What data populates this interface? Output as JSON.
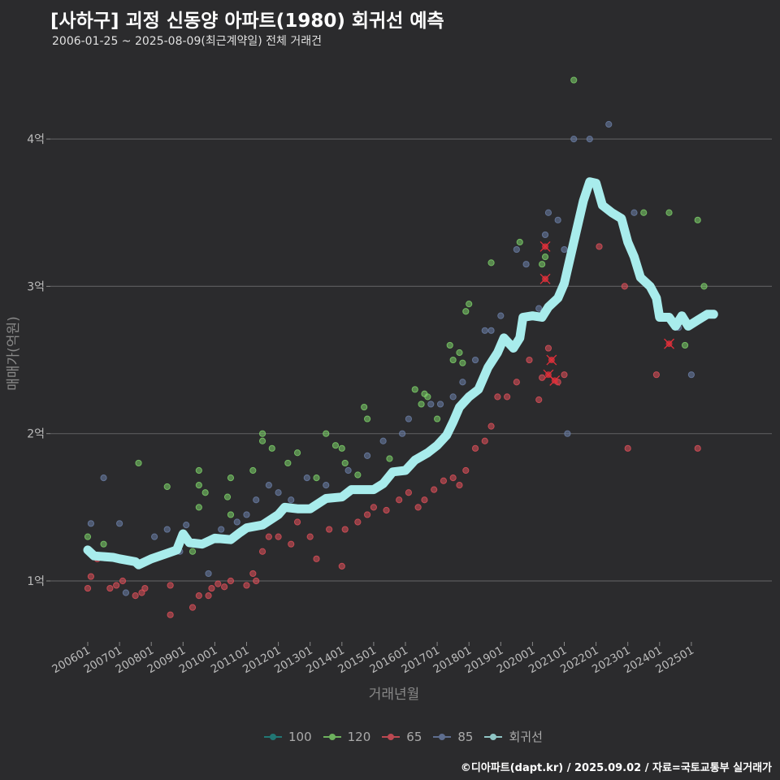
{
  "chart_data": {
    "type": "scatter",
    "title": "[사하구] 괴정 신동양 아파트(1980) 회귀선 예측",
    "subtitle": "2006-01-25 ~ 2025-08-09(최근계약일) 전체 거래건",
    "xlabel": "거래년월",
    "ylabel": "매매가(억원)",
    "xlim": [
      2005.6,
      2026.2
    ],
    "ylim": [
      0.6,
      4.6
    ],
    "yticks": [
      {
        "v": 1,
        "label": "1억"
      },
      {
        "v": 2,
        "label": "2억"
      },
      {
        "v": 3,
        "label": "3억"
      },
      {
        "v": 4,
        "label": "4억"
      }
    ],
    "xticks": [
      "200601",
      "200701",
      "200801",
      "200901",
      "201001",
      "201101",
      "201201",
      "201301",
      "201401",
      "201501",
      "201601",
      "201701",
      "201801",
      "201901",
      "202001",
      "202101",
      "202201",
      "202301",
      "202401",
      "202501"
    ],
    "grid": true,
    "legend_position": "bottom",
    "legend": [
      {
        "name": "100",
        "color": "#1f8a86"
      },
      {
        "name": "120",
        "color": "#7ed36a"
      },
      {
        "name": "65",
        "color": "#e0505a"
      },
      {
        "name": "85",
        "color": "#6b7fa8"
      },
      {
        "name": "회귀선",
        "color": "#a8ecec"
      }
    ],
    "series": [
      {
        "name": "120",
        "color": "#7ed36a",
        "points": [
          [
            2006.0,
            1.3
          ],
          [
            2006.5,
            1.25
          ],
          [
            2007.6,
            1.8
          ],
          [
            2008.5,
            1.64
          ],
          [
            2009.3,
            1.2
          ],
          [
            2009.5,
            1.5
          ],
          [
            2009.5,
            1.65
          ],
          [
            2009.5,
            1.75
          ],
          [
            2009.7,
            1.6
          ],
          [
            2010.4,
            1.57
          ],
          [
            2010.5,
            1.7
          ],
          [
            2010.5,
            1.45
          ],
          [
            2011.2,
            1.75
          ],
          [
            2011.5,
            1.95
          ],
          [
            2011.5,
            2.0
          ],
          [
            2011.8,
            1.9
          ],
          [
            2012.3,
            1.8
          ],
          [
            2012.6,
            1.87
          ],
          [
            2013.2,
            1.7
          ],
          [
            2013.5,
            2.0
          ],
          [
            2013.8,
            1.92
          ],
          [
            2014.0,
            1.9
          ],
          [
            2014.1,
            1.8
          ],
          [
            2014.5,
            1.72
          ],
          [
            2014.7,
            2.18
          ],
          [
            2014.8,
            2.1
          ],
          [
            2015.5,
            1.83
          ],
          [
            2016.3,
            2.3
          ],
          [
            2016.5,
            2.2
          ],
          [
            2016.6,
            2.27
          ],
          [
            2016.7,
            2.25
          ],
          [
            2017.0,
            2.1
          ],
          [
            2017.4,
            2.6
          ],
          [
            2017.5,
            2.5
          ],
          [
            2017.7,
            2.55
          ],
          [
            2017.8,
            2.48
          ],
          [
            2017.9,
            2.83
          ],
          [
            2018.0,
            2.88
          ],
          [
            2018.7,
            3.16
          ],
          [
            2019.6,
            3.3
          ],
          [
            2020.3,
            3.15
          ],
          [
            2020.4,
            3.2
          ],
          [
            2021.3,
            4.4
          ],
          [
            2023.5,
            3.5
          ],
          [
            2024.3,
            3.5
          ],
          [
            2024.8,
            2.6
          ],
          [
            2025.2,
            3.45
          ],
          [
            2025.4,
            3.0
          ]
        ]
      },
      {
        "name": "65",
        "color": "#e0505a",
        "points": [
          [
            2006.0,
            0.95
          ],
          [
            2006.1,
            1.03
          ],
          [
            2006.3,
            1.15
          ],
          [
            2006.7,
            0.95
          ],
          [
            2006.9,
            0.97
          ],
          [
            2007.1,
            1.0
          ],
          [
            2007.5,
            0.9
          ],
          [
            2007.7,
            0.92
          ],
          [
            2007.8,
            0.95
          ],
          [
            2008.6,
            0.97
          ],
          [
            2008.6,
            0.77
          ],
          [
            2009.3,
            0.82
          ],
          [
            2009.5,
            0.9
          ],
          [
            2009.8,
            0.9
          ],
          [
            2009.9,
            0.95
          ],
          [
            2010.1,
            0.98
          ],
          [
            2010.3,
            0.96
          ],
          [
            2010.5,
            1.0
          ],
          [
            2011.0,
            0.97
          ],
          [
            2011.2,
            1.05
          ],
          [
            2011.3,
            1.0
          ],
          [
            2011.5,
            1.2
          ],
          [
            2011.7,
            1.3
          ],
          [
            2012.0,
            1.3
          ],
          [
            2012.4,
            1.25
          ],
          [
            2012.6,
            1.4
          ],
          [
            2013.0,
            1.3
          ],
          [
            2013.2,
            1.15
          ],
          [
            2013.6,
            1.35
          ],
          [
            2014.0,
            1.1
          ],
          [
            2014.1,
            1.35
          ],
          [
            2014.5,
            1.4
          ],
          [
            2014.8,
            1.45
          ],
          [
            2015.0,
            1.5
          ],
          [
            2015.4,
            1.48
          ],
          [
            2015.8,
            1.55
          ],
          [
            2016.1,
            1.6
          ],
          [
            2016.4,
            1.5
          ],
          [
            2016.6,
            1.55
          ],
          [
            2016.9,
            1.62
          ],
          [
            2017.2,
            1.68
          ],
          [
            2017.5,
            1.7
          ],
          [
            2017.7,
            1.65
          ],
          [
            2017.9,
            1.75
          ],
          [
            2018.2,
            1.9
          ],
          [
            2018.5,
            1.95
          ],
          [
            2018.7,
            2.05
          ],
          [
            2018.9,
            2.25
          ],
          [
            2019.2,
            2.25
          ],
          [
            2019.5,
            2.35
          ],
          [
            2019.9,
            2.5
          ],
          [
            2020.2,
            2.23
          ],
          [
            2020.3,
            2.38
          ],
          [
            2020.5,
            2.58
          ],
          [
            2020.8,
            2.35
          ],
          [
            2021.0,
            2.4
          ],
          [
            2022.1,
            3.27
          ],
          [
            2022.9,
            3.0
          ],
          [
            2023.0,
            1.9
          ],
          [
            2023.9,
            2.4
          ],
          [
            2025.2,
            1.9
          ]
        ]
      },
      {
        "name": "85",
        "color": "#6b7fa8",
        "points": [
          [
            2006.1,
            1.39
          ],
          [
            2006.5,
            1.7
          ],
          [
            2007.0,
            1.39
          ],
          [
            2007.2,
            0.92
          ],
          [
            2008.1,
            1.3
          ],
          [
            2008.5,
            1.35
          ],
          [
            2008.9,
            1.2
          ],
          [
            2009.1,
            1.38
          ],
          [
            2009.8,
            1.05
          ],
          [
            2010.2,
            1.35
          ],
          [
            2010.7,
            1.4
          ],
          [
            2011.0,
            1.45
          ],
          [
            2011.3,
            1.55
          ],
          [
            2011.7,
            1.65
          ],
          [
            2012.0,
            1.6
          ],
          [
            2012.4,
            1.55
          ],
          [
            2012.9,
            1.7
          ],
          [
            2013.5,
            1.65
          ],
          [
            2014.2,
            1.75
          ],
          [
            2014.8,
            1.85
          ],
          [
            2015.3,
            1.95
          ],
          [
            2015.9,
            2.0
          ],
          [
            2016.1,
            2.1
          ],
          [
            2016.8,
            2.2
          ],
          [
            2017.1,
            2.2
          ],
          [
            2017.5,
            2.25
          ],
          [
            2017.8,
            2.35
          ],
          [
            2018.2,
            2.5
          ],
          [
            2018.5,
            2.7
          ],
          [
            2018.7,
            2.7
          ],
          [
            2019.0,
            2.8
          ],
          [
            2019.5,
            3.25
          ],
          [
            2019.8,
            3.15
          ],
          [
            2020.2,
            2.85
          ],
          [
            2020.4,
            3.35
          ],
          [
            2020.5,
            3.5
          ],
          [
            2020.8,
            3.45
          ],
          [
            2021.0,
            3.25
          ],
          [
            2021.1,
            2.0
          ],
          [
            2021.3,
            4.0
          ],
          [
            2021.8,
            4.0
          ],
          [
            2022.4,
            4.1
          ],
          [
            2023.2,
            3.5
          ],
          [
            2024.6,
            2.72
          ],
          [
            2025.0,
            2.4
          ]
        ]
      },
      {
        "name": "100",
        "color": "#1f8a86",
        "points": []
      }
    ],
    "highlights": [
      [
        2020.4,
        3.27
      ],
      [
        2020.4,
        3.05
      ],
      [
        2020.6,
        2.5
      ],
      [
        2020.5,
        2.4
      ],
      [
        2020.7,
        2.36
      ],
      [
        2024.3,
        2.61
      ]
    ],
    "regression": {
      "name": "회귀선",
      "color": "#a8ecec",
      "points": [
        [
          2006.0,
          1.21
        ],
        [
          2006.2,
          1.17
        ],
        [
          2006.8,
          1.16
        ],
        [
          2007.0,
          1.15
        ],
        [
          2007.5,
          1.13
        ],
        [
          2007.6,
          1.11
        ],
        [
          2008.0,
          1.15
        ],
        [
          2008.4,
          1.18
        ],
        [
          2008.8,
          1.21
        ],
        [
          2009.0,
          1.32
        ],
        [
          2009.2,
          1.26
        ],
        [
          2009.6,
          1.25
        ],
        [
          2010.0,
          1.29
        ],
        [
          2010.5,
          1.28
        ],
        [
          2010.8,
          1.33
        ],
        [
          2011.0,
          1.36
        ],
        [
          2011.5,
          1.38
        ],
        [
          2012.0,
          1.45
        ],
        [
          2012.2,
          1.5
        ],
        [
          2012.6,
          1.49
        ],
        [
          2013.0,
          1.49
        ],
        [
          2013.5,
          1.56
        ],
        [
          2014.0,
          1.57
        ],
        [
          2014.3,
          1.62
        ],
        [
          2015.0,
          1.62
        ],
        [
          2015.3,
          1.66
        ],
        [
          2015.6,
          1.74
        ],
        [
          2016.0,
          1.75
        ],
        [
          2016.3,
          1.82
        ],
        [
          2016.7,
          1.87
        ],
        [
          2017.0,
          1.92
        ],
        [
          2017.3,
          1.99
        ],
        [
          2017.5,
          2.08
        ],
        [
          2017.7,
          2.18
        ],
        [
          2018.0,
          2.25
        ],
        [
          2018.3,
          2.3
        ],
        [
          2018.6,
          2.45
        ],
        [
          2018.9,
          2.55
        ],
        [
          2019.1,
          2.65
        ],
        [
          2019.4,
          2.58
        ],
        [
          2019.6,
          2.65
        ],
        [
          2019.7,
          2.79
        ],
        [
          2020.0,
          2.8
        ],
        [
          2020.3,
          2.79
        ],
        [
          2020.5,
          2.86
        ],
        [
          2020.8,
          2.92
        ],
        [
          2021.0,
          3.02
        ],
        [
          2021.3,
          3.3
        ],
        [
          2021.6,
          3.58
        ],
        [
          2021.8,
          3.71
        ],
        [
          2022.0,
          3.7
        ],
        [
          2022.2,
          3.55
        ],
        [
          2022.5,
          3.5
        ],
        [
          2022.8,
          3.46
        ],
        [
          2023.0,
          3.3
        ],
        [
          2023.2,
          3.2
        ],
        [
          2023.4,
          3.06
        ],
        [
          2023.7,
          3.0
        ],
        [
          2023.9,
          2.92
        ],
        [
          2024.0,
          2.79
        ],
        [
          2024.3,
          2.79
        ],
        [
          2024.5,
          2.73
        ],
        [
          2024.7,
          2.8
        ],
        [
          2024.9,
          2.73
        ],
        [
          2025.2,
          2.77
        ],
        [
          2025.5,
          2.81
        ],
        [
          2025.7,
          2.81
        ]
      ]
    }
  },
  "credit": "©디아파트(dapt.kr) / 2025.09.02 / 자료=국토교통부 실거래가"
}
